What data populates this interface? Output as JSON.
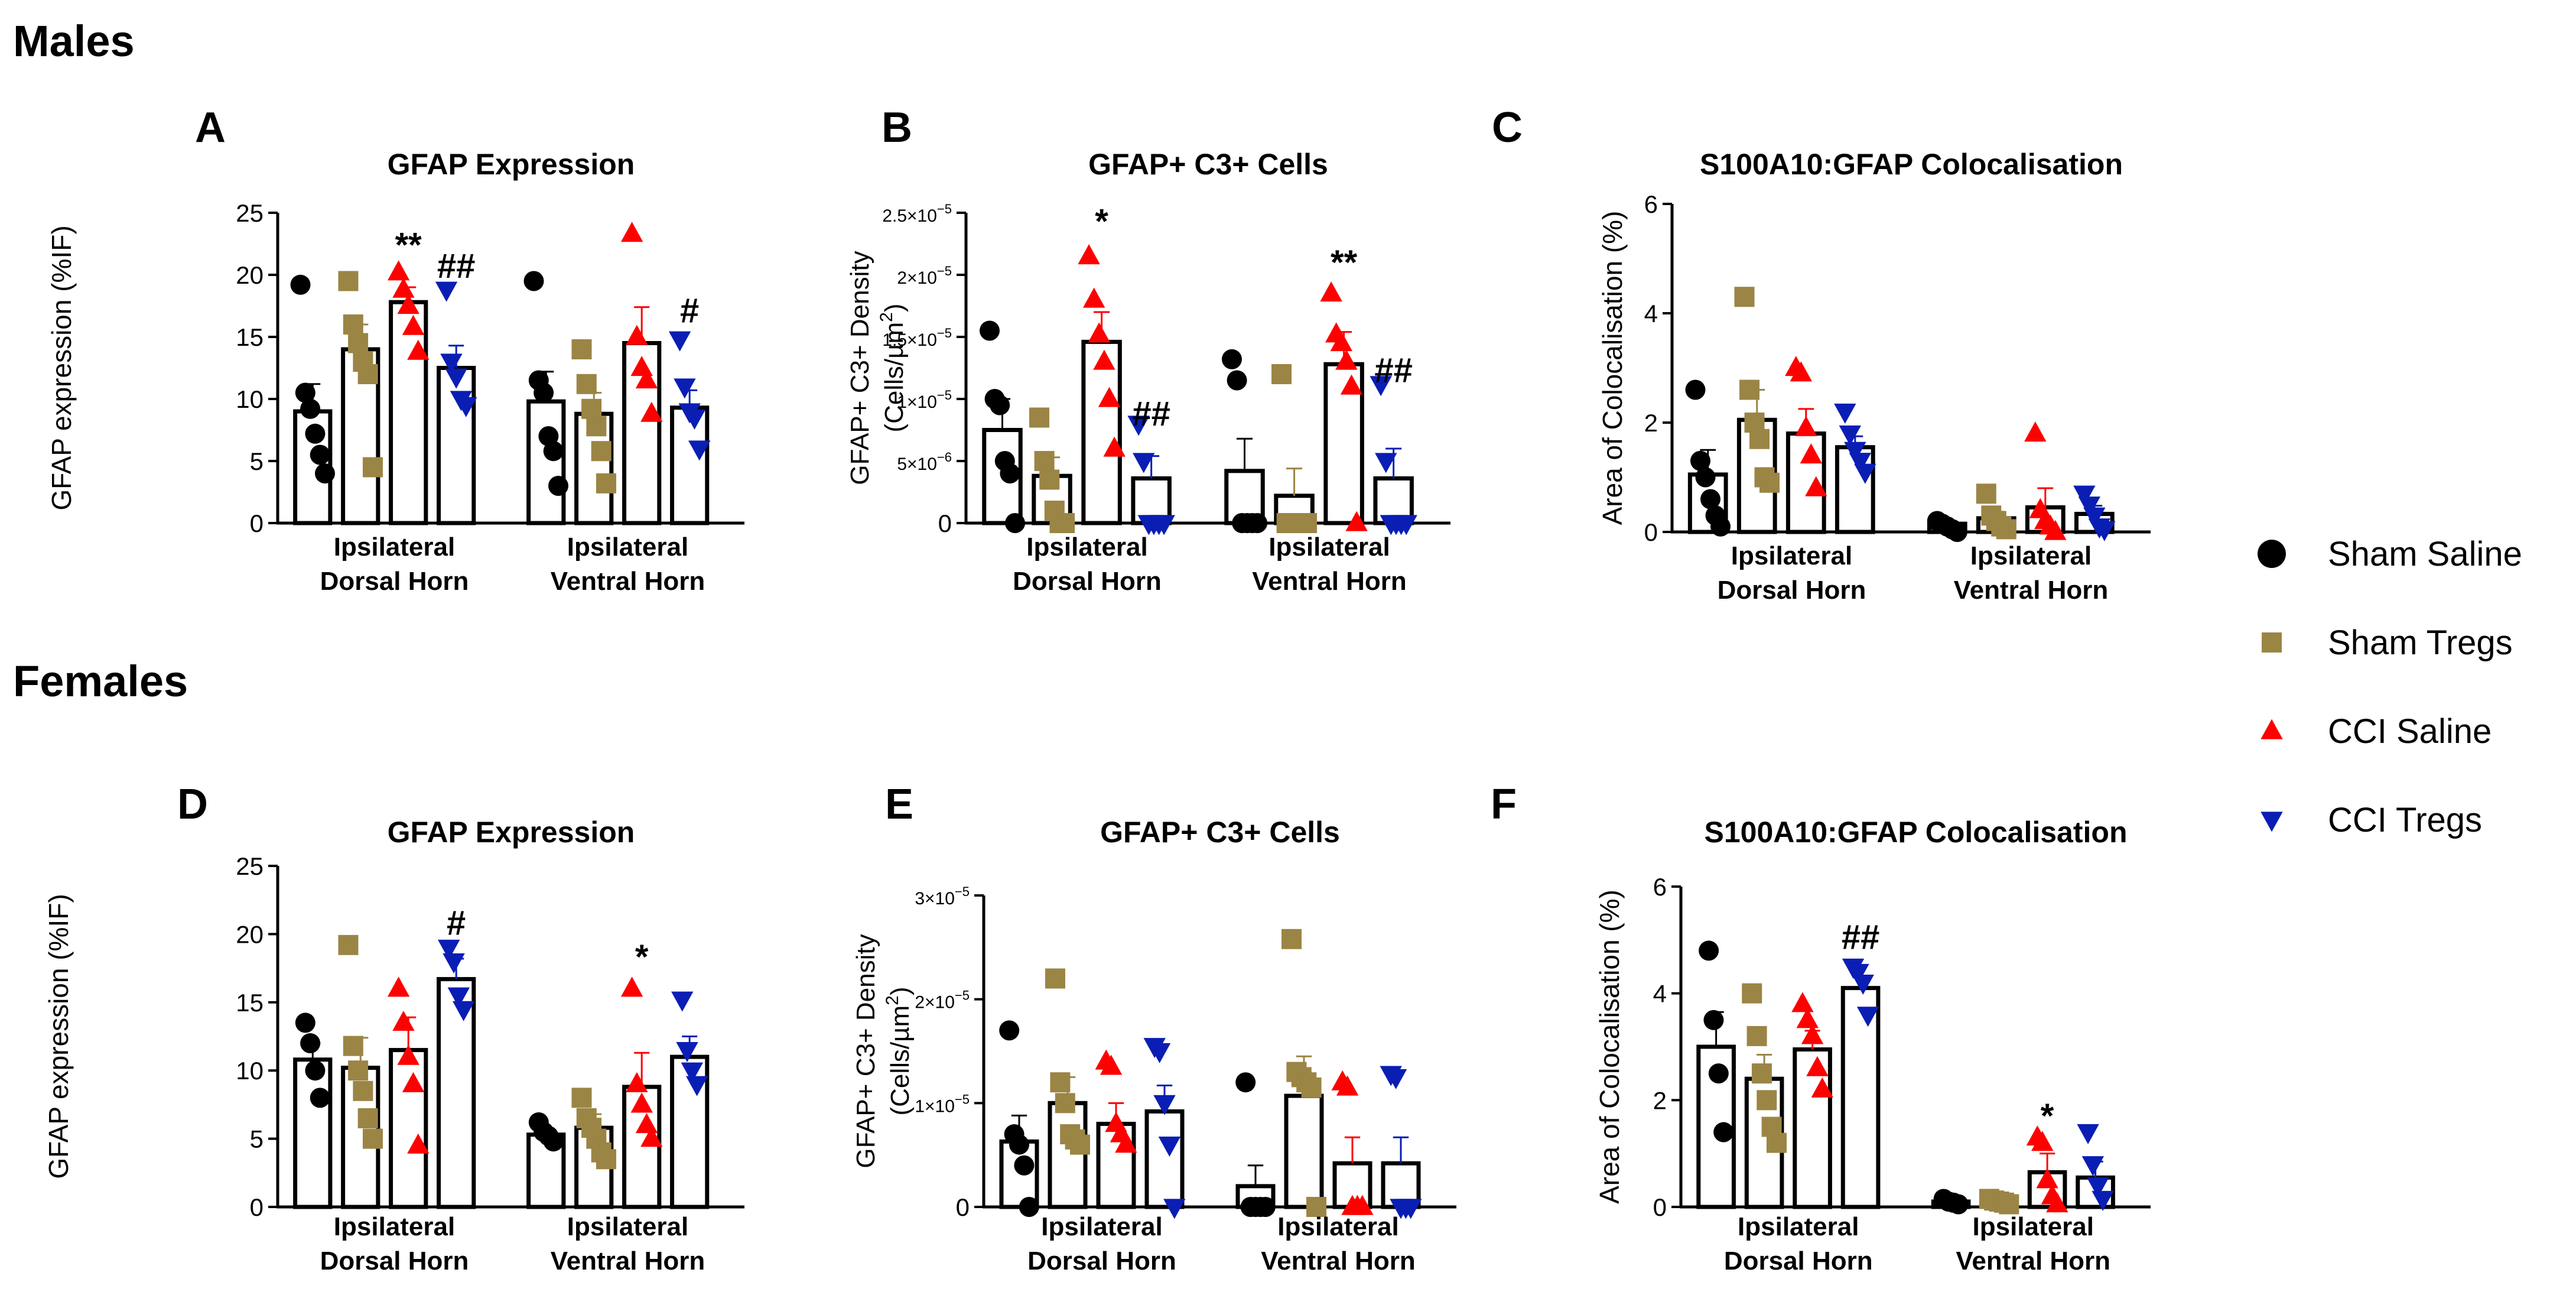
{
  "sections": {
    "males": "Males",
    "females": "Females"
  },
  "categories_multiline": [
    [
      "Ipsilateral",
      "Dorsal Horn"
    ],
    [
      "Ipsilateral",
      "Ventral Horn"
    ]
  ],
  "legend": [
    {
      "name": "Sham Saline",
      "color": "#000000",
      "marker": "circle"
    },
    {
      "name": "Sham Tregs",
      "color": "#9B8545",
      "marker": "square"
    },
    {
      "name": "CCI Saline",
      "color": "#FF0000",
      "marker": "triangle-up"
    },
    {
      "name": "CCI Tregs",
      "color": "#0A1EB4",
      "marker": "triangle-down"
    }
  ],
  "chart_data": [
    {
      "panel": "A",
      "type": "bar",
      "title": "GFAP Expression",
      "ylabel": "GFAP expression (%IF)",
      "ylabel_sup": "",
      "ylabel_tail": "",
      "ylim": [
        0,
        25
      ],
      "yticks": [
        0,
        5,
        10,
        15,
        20,
        25
      ],
      "yticklabels": [
        [
          "0"
        ],
        [
          "5"
        ],
        [
          "10"
        ],
        [
          "15"
        ],
        [
          "20"
        ],
        [
          "25"
        ]
      ],
      "categories": [
        "Ipsilateral Dorsal Horn",
        "Ipsilateral Ventral Horn"
      ],
      "series": [
        {
          "name": "Sham Saline",
          "values": [
            9.0,
            9.8
          ],
          "sem": [
            2.2,
            2.4
          ],
          "points": [
            [
              19.2,
              10.5,
              9.2,
              7.2,
              5.5,
              4.0
            ],
            [
              19.5,
              11.5,
              10.5,
              7.0,
              5.8,
              3.0
            ]
          ]
        },
        {
          "name": "Sham Tregs",
          "values": [
            14.0,
            8.8
          ],
          "sem": [
            2.0,
            1.7
          ],
          "points": [
            [
              19.5,
              16.0,
              14.5,
              13.0,
              12.0,
              4.5
            ],
            [
              14.0,
              11.2,
              9.2,
              7.8,
              5.8,
              3.2
            ]
          ]
        },
        {
          "name": "CCI Saline",
          "values": [
            17.8,
            14.5
          ],
          "sem": [
            1.2,
            2.9
          ],
          "points": [
            [
              20.2,
              18.8,
              17.5,
              15.8,
              13.8
            ],
            [
              23.3,
              15.0,
              12.5,
              11.5,
              8.8
            ]
          ]
        },
        {
          "name": "CCI Tregs",
          "values": [
            12.5,
            9.3
          ],
          "sem": [
            1.8,
            1.4
          ],
          "points": [
            [
              18.8,
              13.0,
              11.8,
              10.0,
              9.5
            ],
            [
              14.8,
              11.0,
              9.0,
              8.5,
              6.0
            ]
          ]
        }
      ],
      "annotations": [
        {
          "cat": 0,
          "series": 2,
          "text": "**",
          "at": 22.6
        },
        {
          "cat": 0,
          "series": 3,
          "text": "##",
          "at": 20.9
        },
        {
          "cat": 1,
          "series": 3,
          "text": "#",
          "at": 17.3
        }
      ]
    },
    {
      "panel": "B",
      "type": "bar",
      "title": "GFAP+ C3+ Cells",
      "ylabel": "GFAP+ C3+ Density",
      "ylabel2": "(Cells/µm",
      "ylabel_sup": "2",
      "ylabel_tail": ")",
      "ylim": [
        0,
        2.5e-05
      ],
      "yticks": [
        0,
        5e-06,
        1e-05,
        1.5e-05,
        2e-05,
        2.5e-05
      ],
      "yticklabels": [
        [
          "0"
        ],
        [
          "5×10",
          "−6"
        ],
        [
          "1×10",
          "−5"
        ],
        [
          "1.5×10",
          "−5"
        ],
        [
          "2×10",
          "−5"
        ],
        [
          "2.5×10",
          "−5"
        ]
      ],
      "categories": [
        "Ipsilateral Dorsal Horn",
        "Ipsilateral Ventral Horn"
      ],
      "series": [
        {
          "name": "Sham Saline",
          "values": [
            7.5e-06,
            4.2e-06
          ],
          "sem": [
            2.5e-06,
            2.6e-06
          ],
          "points": [
            [
              1.55e-05,
              1e-05,
              9.5e-06,
              5e-06,
              4e-06,
              0
            ],
            [
              1.32e-05,
              1.15e-05,
              0,
              0,
              0,
              0
            ]
          ]
        },
        {
          "name": "Sham Tregs",
          "values": [
            3.8e-06,
            2.2e-06
          ],
          "sem": [
            1.5e-06,
            2.2e-06
          ],
          "points": [
            [
              8.5e-06,
              5e-06,
              3.5e-06,
              1e-06,
              0,
              0
            ],
            [
              1.2e-05,
              0,
              0,
              0,
              0,
              0
            ]
          ]
        },
        {
          "name": "CCI Saline",
          "values": [
            1.46e-05,
            1.28e-05
          ],
          "sem": [
            2.4e-06,
            2.6e-06
          ],
          "points": [
            [
              2.15e-05,
              1.8e-05,
              1.52e-05,
              1.3e-05,
              1e-05,
              6e-06
            ],
            [
              1.85e-05,
              1.52e-05,
              1.45e-05,
              1.3e-05,
              1.1e-05,
              0
            ]
          ]
        },
        {
          "name": "CCI Tregs",
          "values": [
            3.6e-06,
            3.6e-06
          ],
          "sem": [
            1.8e-06,
            2.4e-06
          ],
          "points": [
            [
              8e-06,
              5e-06,
              0,
              0,
              0,
              0
            ],
            [
              1.12e-05,
              5e-06,
              0,
              0,
              0,
              0
            ]
          ]
        }
      ],
      "annotations": [
        {
          "cat": 0,
          "series": 2,
          "text": "*",
          "at": 2.45e-05
        },
        {
          "cat": 0,
          "series": 3,
          "text": "##",
          "at": 9e-06
        },
        {
          "cat": 1,
          "series": 2,
          "text": "**",
          "at": 2.12e-05
        },
        {
          "cat": 1,
          "series": 3,
          "text": "##",
          "at": 1.25e-05
        }
      ]
    },
    {
      "panel": "C",
      "type": "bar",
      "title": "S100A10:GFAP Colocalisation",
      "ylabel": "Area of Colocalisation (%)",
      "ylabel_sup": "",
      "ylabel_tail": "",
      "ylim": [
        0,
        6
      ],
      "yticks": [
        0,
        2,
        4,
        6
      ],
      "yticklabels": [
        [
          "0"
        ],
        [
          "2"
        ],
        [
          "4"
        ],
        [
          "6"
        ]
      ],
      "categories": [
        "Ipsilateral Dorsal Horn",
        "Ipsilateral Ventral Horn"
      ],
      "series": [
        {
          "name": "Sham Saline",
          "values": [
            1.05,
            0.15
          ],
          "sem": [
            0.45,
            0.06
          ],
          "points": [
            [
              2.6,
              1.3,
              1.0,
              0.6,
              0.3,
              0.1
            ],
            [
              0.2,
              0.15,
              0.1,
              0.05,
              0.0
            ]
          ]
        },
        {
          "name": "Sham Tregs",
          "values": [
            2.05,
            0.25
          ],
          "sem": [
            0.55,
            0.12
          ],
          "points": [
            [
              4.3,
              2.6,
              2.0,
              1.7,
              1.0,
              0.9
            ],
            [
              0.7,
              0.3,
              0.2,
              0.1,
              0.05
            ]
          ]
        },
        {
          "name": "CCI Saline",
          "values": [
            1.8,
            0.45
          ],
          "sem": [
            0.45,
            0.35
          ],
          "points": [
            [
              3.0,
              2.9,
              1.9,
              1.4,
              0.8
            ],
            [
              1.8,
              0.4,
              0.2,
              0.1,
              0.0
            ]
          ]
        },
        {
          "name": "CCI Tregs",
          "values": [
            1.55,
            0.33
          ],
          "sem": [
            0.2,
            0.15
          ],
          "points": [
            [
              2.2,
              1.8,
              1.5,
              1.3,
              1.1
            ],
            [
              0.7,
              0.5,
              0.3,
              0.1,
              0.05
            ]
          ]
        }
      ],
      "annotations": []
    },
    {
      "panel": "D",
      "type": "bar",
      "title": "GFAP Expression",
      "ylabel": "GFAP expression (%IF)",
      "ylabel_sup": "",
      "ylabel_tail": "",
      "ylim": [
        0,
        25
      ],
      "yticks": [
        0,
        5,
        10,
        15,
        20,
        25
      ],
      "yticklabels": [
        [
          "0"
        ],
        [
          "5"
        ],
        [
          "10"
        ],
        [
          "15"
        ],
        [
          "20"
        ],
        [
          "25"
        ]
      ],
      "categories": [
        "Ipsilateral Dorsal Horn",
        "Ipsilateral Ventral Horn"
      ],
      "series": [
        {
          "name": "Sham Saline",
          "values": [
            10.8,
            5.3
          ],
          "sem": [
            1.2,
            0.4
          ],
          "points": [
            [
              13.5,
              12.0,
              10.0,
              8.0
            ],
            [
              6.2,
              5.5,
              5.2,
              4.8
            ]
          ]
        },
        {
          "name": "Sham Tregs",
          "values": [
            10.2,
            5.8
          ],
          "sem": [
            2.2,
            1.0
          ],
          "points": [
            [
              19.2,
              11.8,
              10.0,
              8.5,
              6.5,
              5.0
            ],
            [
              8.0,
              6.5,
              5.8,
              5.0,
              4.0,
              3.5
            ]
          ]
        },
        {
          "name": "CCI Saline",
          "values": [
            11.5,
            8.8
          ],
          "sem": [
            2.4,
            2.5
          ],
          "points": [
            [
              16.0,
              13.5,
              11.0,
              9.0,
              4.5
            ],
            [
              16.0,
              9.0,
              7.5,
              6.0,
              5.0
            ]
          ]
        },
        {
          "name": "CCI Tregs",
          "values": [
            16.7,
            11.0
          ],
          "sem": [
            1.5,
            1.5
          ],
          "points": [
            [
              19.0,
              18.0,
              15.5,
              14.5
            ],
            [
              15.2,
              11.5,
              10.0,
              9.0
            ]
          ]
        }
      ],
      "annotations": [
        {
          "cat": 0,
          "series": 3,
          "text": "#",
          "at": 21.0
        },
        {
          "cat": 1,
          "series": 2,
          "text": "*",
          "at": 18.5
        }
      ]
    },
    {
      "panel": "E",
      "type": "bar",
      "title": "GFAP+ C3+ Cells",
      "ylabel": "GFAP+ C3+ Density",
      "ylabel2": "(Cells/µm",
      "ylabel_sup": "2",
      "ylabel_tail": ")",
      "ylim": [
        0,
        3e-05
      ],
      "yticks": [
        0,
        1e-05,
        2e-05,
        3e-05
      ],
      "yticklabels": [
        [
          "0"
        ],
        [
          "1×10",
          "−5"
        ],
        [
          "2×10",
          "−5"
        ],
        [
          "3×10",
          "−5"
        ]
      ],
      "categories": [
        "Ipsilateral Dorsal Horn",
        "Ipsilateral Ventral Horn"
      ],
      "series": [
        {
          "name": "Sham Saline",
          "values": [
            6.3e-06,
            2e-06
          ],
          "sem": [
            2.5e-06,
            2e-06
          ],
          "points": [
            [
              1.7e-05,
              7e-06,
              6e-06,
              4e-06,
              0
            ],
            [
              1.2e-05,
              0,
              0,
              0,
              0
            ]
          ]
        },
        {
          "name": "Sham Tregs",
          "values": [
            1e-05,
            1.07e-05
          ],
          "sem": [
            2.5e-06,
            3.8e-06
          ],
          "points": [
            [
              2.2e-05,
              1.2e-05,
              1e-05,
              7e-06,
              6.5e-06,
              6e-06
            ],
            [
              2.58e-05,
              1.3e-05,
              1.25e-05,
              1.2e-05,
              1.15e-05,
              0
            ]
          ]
        },
        {
          "name": "CCI Saline",
          "values": [
            8e-06,
            4.2e-06
          ],
          "sem": [
            2e-06,
            2.5e-06
          ],
          "points": [
            [
              1.4e-05,
              1.35e-05,
              8e-06,
              7e-06,
              6e-06
            ],
            [
              1.2e-05,
              1.15e-05,
              0,
              0,
              0
            ]
          ]
        },
        {
          "name": "CCI Tregs",
          "values": [
            9.2e-06,
            4.2e-06
          ],
          "sem": [
            2.5e-06,
            2.5e-06
          ],
          "points": [
            [
              1.55e-05,
              1.5e-05,
              1e-05,
              6e-06,
              0
            ],
            [
              1.28e-05,
              1.25e-05,
              0,
              0,
              0
            ]
          ]
        }
      ],
      "annotations": []
    },
    {
      "panel": "F",
      "type": "bar",
      "title": "S100A10:GFAP Colocalisation",
      "ylabel": "Area of Colocalisation (%)",
      "ylabel_sup": "",
      "ylabel_tail": "",
      "ylim": [
        0,
        6
      ],
      "yticks": [
        0,
        2,
        4,
        6
      ],
      "yticklabels": [
        [
          "0"
        ],
        [
          "2"
        ],
        [
          "4"
        ],
        [
          "6"
        ]
      ],
      "categories": [
        "Ipsilateral Dorsal Horn",
        "Ipsilateral Ventral Horn"
      ],
      "series": [
        {
          "name": "Sham Saline",
          "values": [
            3.0,
            0.1
          ],
          "sem": [
            0.65,
            0.03
          ],
          "points": [
            [
              4.8,
              3.5,
              2.5,
              1.4
            ],
            [
              0.15,
              0.1,
              0.08,
              0.05
            ]
          ]
        },
        {
          "name": "Sham Tregs",
          "values": [
            2.4,
            0.1
          ],
          "sem": [
            0.45,
            0.03
          ],
          "points": [
            [
              4.0,
              3.2,
              2.5,
              2.0,
              1.5,
              1.2
            ],
            [
              0.15,
              0.12,
              0.1,
              0.08,
              0.05
            ]
          ]
        },
        {
          "name": "CCI Saline",
          "values": [
            2.95,
            0.65
          ],
          "sem": [
            0.35,
            0.35
          ],
          "points": [
            [
              3.8,
              3.5,
              3.2,
              2.6,
              2.2
            ],
            [
              1.3,
              1.2,
              0.5,
              0.2,
              0.05
            ]
          ]
        },
        {
          "name": "CCI Tregs",
          "values": [
            4.1,
            0.55
          ],
          "sem": [
            0.2,
            0.3
          ],
          "points": [
            [
              4.5,
              4.4,
              4.2,
              3.6
            ],
            [
              1.4,
              0.8,
              0.4,
              0.15
            ]
          ]
        }
      ],
      "annotations": [
        {
          "cat": 0,
          "series": 3,
          "text": "##",
          "at": 5.1
        },
        {
          "cat": 1,
          "series": 2,
          "text": "*",
          "at": 1.75
        }
      ]
    }
  ]
}
